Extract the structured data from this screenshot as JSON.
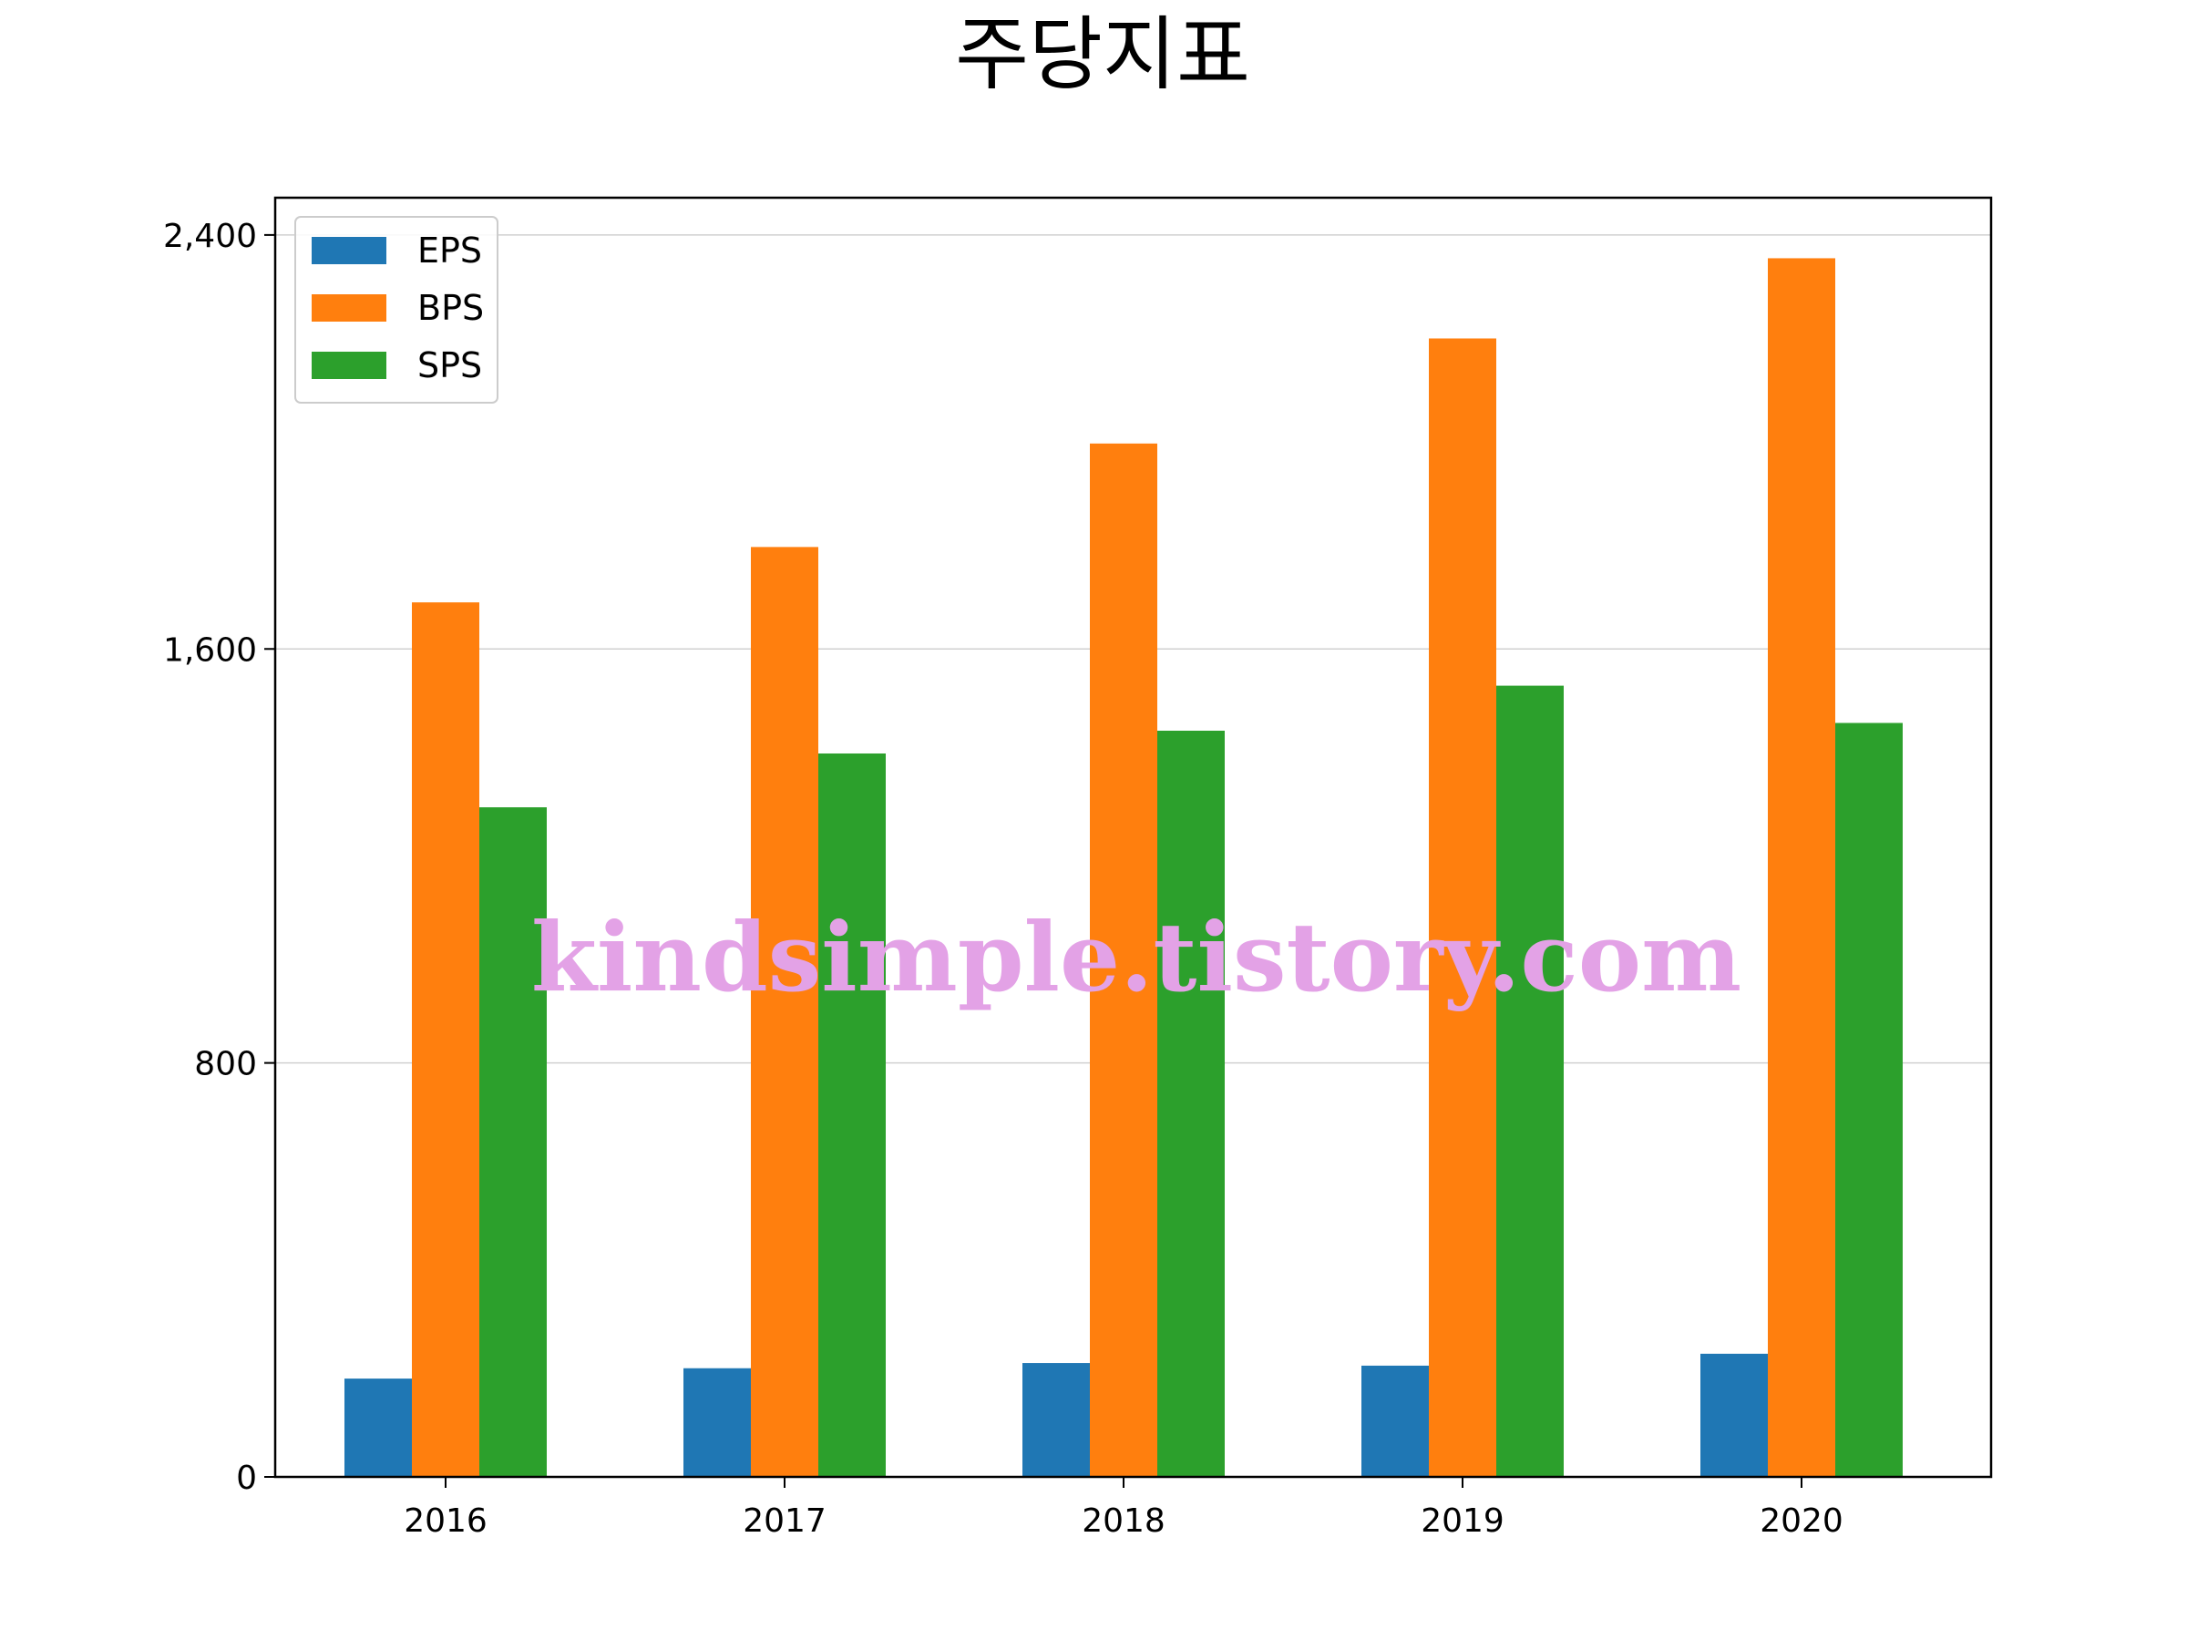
{
  "chart_data": {
    "type": "bar",
    "title": "주당지표",
    "xlabel": "",
    "ylabel": "",
    "categories": [
      "2016",
      "2017",
      "2018",
      "2019",
      "2020"
    ],
    "series": [
      {
        "name": "EPS",
        "color": "#1f77b4",
        "values": [
          190,
          210,
          220,
          215,
          238
        ]
      },
      {
        "name": "BPS",
        "color": "#ff7f0e",
        "values": [
          1690,
          1797,
          1997,
          2200,
          2355
        ]
      },
      {
        "name": "SPS",
        "color": "#2ca02c",
        "values": [
          1294,
          1398,
          1442,
          1529,
          1457
        ]
      }
    ],
    "ylim": [
      0,
      2472
    ],
    "yticks": [
      0,
      800,
      1600,
      2400
    ],
    "ytick_labels": [
      "0",
      "800",
      "1,600",
      "2,400"
    ],
    "grid": "horizontal",
    "legend_position": "upper-left",
    "watermark": "kindsimple.tistory.com"
  }
}
